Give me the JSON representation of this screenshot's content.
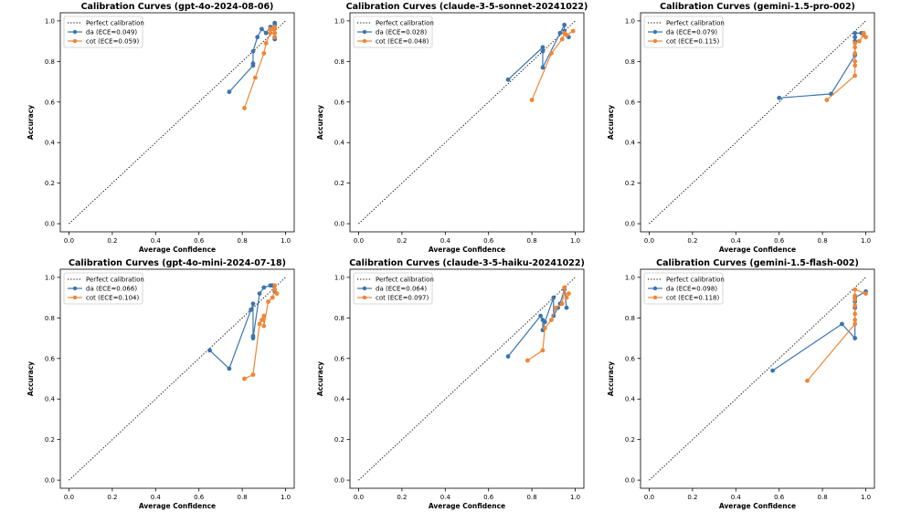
{
  "figure": {
    "legend_perfect_label": "Perfect calibration",
    "colors": {
      "da": "#3a75ae",
      "cot": "#ef8636",
      "perfect": "#000000"
    }
  },
  "chart_data": [
    {
      "type": "line",
      "title": "Calibration Curves (gpt-4o-2024-08-06)",
      "xlabel": "Average Confidence",
      "ylabel": "Accuracy",
      "xlim": [
        0,
        1
      ],
      "ylim": [
        0,
        1
      ],
      "xticks": [
        "0.0",
        "0.2",
        "0.4",
        "0.6",
        "0.8",
        "1.0"
      ],
      "yticks": [
        "0.0",
        "0.2",
        "0.4",
        "0.6",
        "0.8",
        "1.0"
      ],
      "legend_position": "top-left",
      "series": [
        {
          "name": "da",
          "label": "da (ECE=0.049)",
          "ece": 0.049,
          "x": [
            0.74,
            0.85,
            0.85,
            0.85,
            0.87,
            0.89,
            0.91,
            0.93,
            0.94,
            0.95,
            0.95,
            0.95,
            0.95
          ],
          "y": [
            0.65,
            0.78,
            0.79,
            0.85,
            0.92,
            0.96,
            0.94,
            0.97,
            0.96,
            0.98,
            0.99,
            0.91,
            0.92
          ]
        },
        {
          "name": "cot",
          "label": "cot (ECE=0.059)",
          "ece": 0.059,
          "x": [
            0.81,
            0.86,
            0.9,
            0.91,
            0.93,
            0.93,
            0.94,
            0.95,
            0.95,
            0.95,
            0.95
          ],
          "y": [
            0.57,
            0.72,
            0.84,
            0.89,
            0.94,
            0.96,
            0.96,
            0.97,
            0.96,
            0.94,
            0.92
          ]
        }
      ]
    },
    {
      "type": "line",
      "title": "Calibration Curves (claude-3-5-sonnet-20241022)",
      "xlabel": "Average Confidence",
      "ylabel": "Accuracy",
      "xlim": [
        0,
        1
      ],
      "ylim": [
        0,
        1
      ],
      "xticks": [
        "0.0",
        "0.2",
        "0.4",
        "0.6",
        "0.8",
        "1.0"
      ],
      "yticks": [
        "0.0",
        "0.2",
        "0.4",
        "0.6",
        "0.8",
        "1.0"
      ],
      "legend_position": "top-left",
      "series": [
        {
          "name": "da",
          "label": "da (ECE=0.028)",
          "ece": 0.028,
          "x": [
            0.69,
            0.85,
            0.85,
            0.85,
            0.93,
            0.95,
            0.95,
            0.97
          ],
          "y": [
            0.71,
            0.87,
            0.85,
            0.77,
            0.94,
            0.98,
            0.95,
            0.92
          ]
        },
        {
          "name": "cot",
          "label": "cot (ECE=0.048)",
          "ece": 0.048,
          "x": [
            0.8,
            0.89,
            0.94,
            0.95,
            0.96,
            0.99
          ],
          "y": [
            0.61,
            0.84,
            0.91,
            0.94,
            0.93,
            0.95
          ]
        }
      ]
    },
    {
      "type": "line",
      "title": "Calibration Curves (gemini-1.5-pro-002)",
      "xlabel": "Average Confidence",
      "ylabel": "Accuracy",
      "xlim": [
        0,
        1
      ],
      "ylim": [
        0,
        1
      ],
      "xticks": [
        "0.0",
        "0.2",
        "0.4",
        "0.6",
        "0.8",
        "1.0"
      ],
      "yticks": [
        "0.0",
        "0.2",
        "0.4",
        "0.6",
        "0.8",
        "1.0"
      ],
      "legend_position": "top-left",
      "series": [
        {
          "name": "da",
          "label": "da (ECE=0.079)",
          "ece": 0.079,
          "x": [
            0.6,
            0.84,
            0.95,
            0.95,
            0.95,
            0.95,
            0.98,
            0.99
          ],
          "y": [
            0.62,
            0.64,
            0.83,
            0.9,
            0.92,
            0.94,
            0.94,
            0.93
          ]
        },
        {
          "name": "cot",
          "label": "cot (ECE=0.115)",
          "ece": 0.115,
          "x": [
            0.82,
            0.95,
            0.95,
            0.95,
            0.95,
            0.95,
            0.95,
            0.97,
            0.99,
            0.99,
            1.0
          ],
          "y": [
            0.61,
            0.73,
            0.78,
            0.8,
            0.84,
            0.87,
            0.89,
            0.9,
            0.93,
            0.94,
            0.92
          ]
        }
      ]
    },
    {
      "type": "line",
      "title": "Calibration Curves (gpt-4o-mini-2024-07-18)",
      "xlabel": "Average Confidence",
      "ylabel": "Accuracy",
      "xlim": [
        0,
        1
      ],
      "ylim": [
        0,
        1
      ],
      "xticks": [
        "0.0",
        "0.2",
        "0.4",
        "0.6",
        "0.8",
        "1.0"
      ],
      "yticks": [
        "0.0",
        "0.2",
        "0.4",
        "0.6",
        "0.8",
        "1.0"
      ],
      "legend_position": "top-left",
      "series": [
        {
          "name": "da",
          "label": "da (ECE=0.066)",
          "ece": 0.066,
          "x": [
            0.65,
            0.74,
            0.84,
            0.85,
            0.85,
            0.85,
            0.88,
            0.9,
            0.93,
            0.94,
            0.95
          ],
          "y": [
            0.64,
            0.55,
            0.84,
            0.87,
            0.71,
            0.7,
            0.92,
            0.95,
            0.96,
            0.96,
            0.93
          ]
        },
        {
          "name": "cot",
          "label": "cot (ECE=0.104)",
          "ece": 0.104,
          "x": [
            0.81,
            0.85,
            0.88,
            0.89,
            0.9,
            0.9,
            0.92,
            0.94,
            0.95,
            0.95,
            0.96
          ],
          "y": [
            0.5,
            0.52,
            0.77,
            0.79,
            0.81,
            0.76,
            0.88,
            0.9,
            0.94,
            0.96,
            0.92
          ]
        }
      ]
    },
    {
      "type": "line",
      "title": "Calibration Curves (claude-3-5-haiku-20241022)",
      "xlabel": "Average Confidence",
      "ylabel": "Accuracy",
      "xlim": [
        0,
        1
      ],
      "ylim": [
        0,
        1
      ],
      "xticks": [
        "0.0",
        "0.2",
        "0.4",
        "0.6",
        "0.8",
        "1.0"
      ],
      "yticks": [
        "0.0",
        "0.2",
        "0.4",
        "0.6",
        "0.8",
        "1.0"
      ],
      "legend_position": "top-left",
      "series": [
        {
          "name": "da",
          "label": "da (ECE=0.064)",
          "ece": 0.064,
          "x": [
            0.69,
            0.84,
            0.85,
            0.85,
            0.86,
            0.9,
            0.9,
            0.92,
            0.93,
            0.95,
            0.96
          ],
          "y": [
            0.61,
            0.81,
            0.79,
            0.74,
            0.78,
            0.9,
            0.81,
            0.85,
            0.87,
            0.94,
            0.85
          ]
        },
        {
          "name": "cot",
          "label": "cot (ECE=0.097)",
          "ece": 0.097,
          "x": [
            0.78,
            0.85,
            0.86,
            0.89,
            0.91,
            0.94,
            0.95,
            0.96,
            0.97
          ],
          "y": [
            0.59,
            0.64,
            0.75,
            0.79,
            0.85,
            0.87,
            0.95,
            0.9,
            0.92
          ]
        }
      ]
    },
    {
      "type": "line",
      "title": "Calibration Curves (gemini-1.5-flash-002)",
      "xlabel": "Average Confidence",
      "ylabel": "Accuracy",
      "xlim": [
        0,
        1
      ],
      "ylim": [
        0,
        1
      ],
      "xticks": [
        "0.0",
        "0.2",
        "0.4",
        "0.6",
        "0.8",
        "1.0"
      ],
      "yticks": [
        "0.0",
        "0.2",
        "0.4",
        "0.6",
        "0.8",
        "1.0"
      ],
      "legend_position": "top-left",
      "series": [
        {
          "name": "da",
          "label": "da (ECE=0.098)",
          "ece": 0.098,
          "x": [
            0.57,
            0.89,
            0.95,
            0.95,
            0.95,
            0.95,
            1.0
          ],
          "y": [
            0.54,
            0.77,
            0.7,
            0.85,
            0.88,
            0.9,
            0.93
          ]
        },
        {
          "name": "cot",
          "label": "cot (ECE=0.118)",
          "ece": 0.118,
          "x": [
            0.73,
            0.95,
            0.95,
            0.95,
            0.95,
            0.95,
            0.95,
            0.95,
            1.0
          ],
          "y": [
            0.49,
            0.77,
            0.79,
            0.82,
            0.86,
            0.89,
            0.91,
            0.94,
            0.92
          ]
        }
      ]
    }
  ]
}
